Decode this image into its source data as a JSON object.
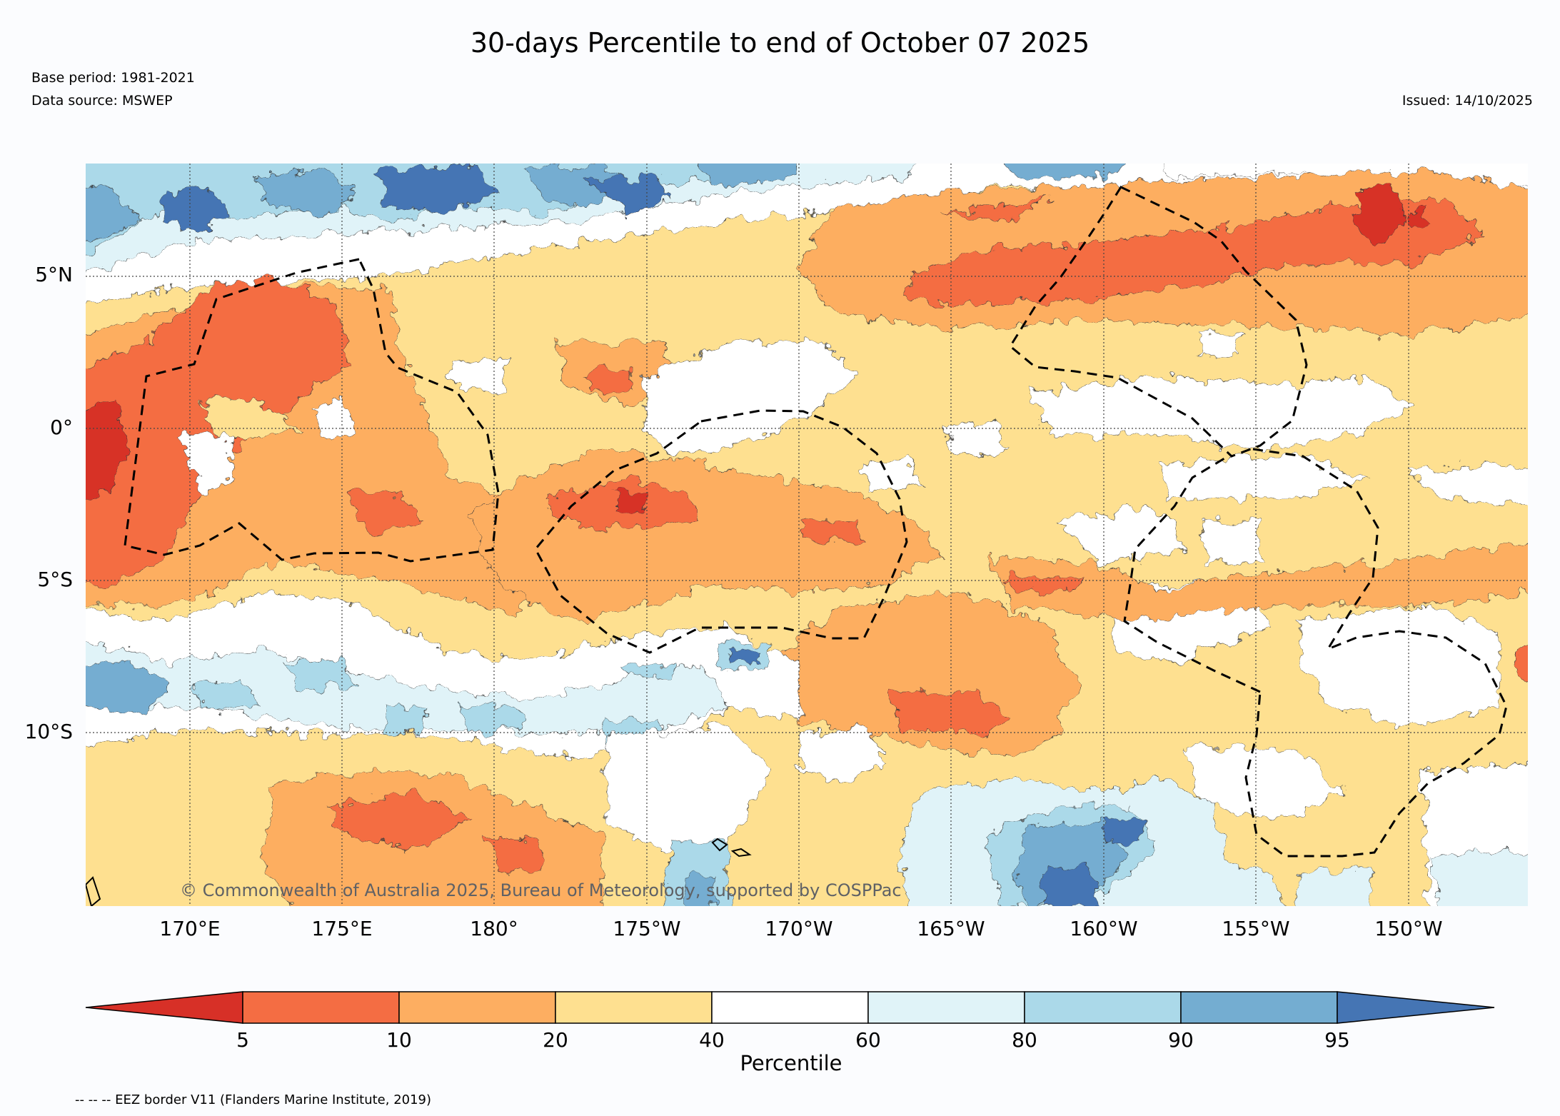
{
  "title": "30-days Percentile to end of October 07 2025",
  "base_period": "Base period: 1981-2021",
  "data_source": "Data source: MSWEP",
  "issued": "Issued: 14/10/2025",
  "copyright": "© Commonwealth of Australia 2025, Bureau of Meteorology, supported by COSPPac",
  "eez_note": "-- -- -- EEZ border V11 (Flanders Marine Institute, 2019)",
  "map": {
    "lon_range": [
      166.6,
      213.9
    ],
    "lat_range": [
      -15.7,
      8.7
    ],
    "lat_ticks": [
      {
        "value": 5,
        "label": "5°N"
      },
      {
        "value": 0,
        "label": "0°"
      },
      {
        "value": -5,
        "label": "5°S"
      },
      {
        "value": -10,
        "label": "10°S"
      }
    ],
    "lon_ticks": [
      {
        "value": 170,
        "label": "170°E"
      },
      {
        "value": 175,
        "label": "175°E"
      },
      {
        "value": 180,
        "label": "180°"
      },
      {
        "value": 185,
        "label": "175°W"
      },
      {
        "value": 190,
        "label": "170°W"
      },
      {
        "value": 195,
        "label": "165°W"
      },
      {
        "value": 200,
        "label": "160°W"
      },
      {
        "value": 205,
        "label": "155°W"
      },
      {
        "value": 210,
        "label": "150°W"
      }
    ]
  },
  "colorbar": {
    "label": "Percentile",
    "ticks": [
      "5",
      "10",
      "20",
      "40",
      "60",
      "80",
      "90",
      "95"
    ],
    "colors": [
      "#d73027",
      "#f46d43",
      "#fdae61",
      "#fee090",
      "#ffffff",
      "#e0f3f8",
      "#abd9e9",
      "#74add1",
      "#4575b4"
    ]
  }
}
